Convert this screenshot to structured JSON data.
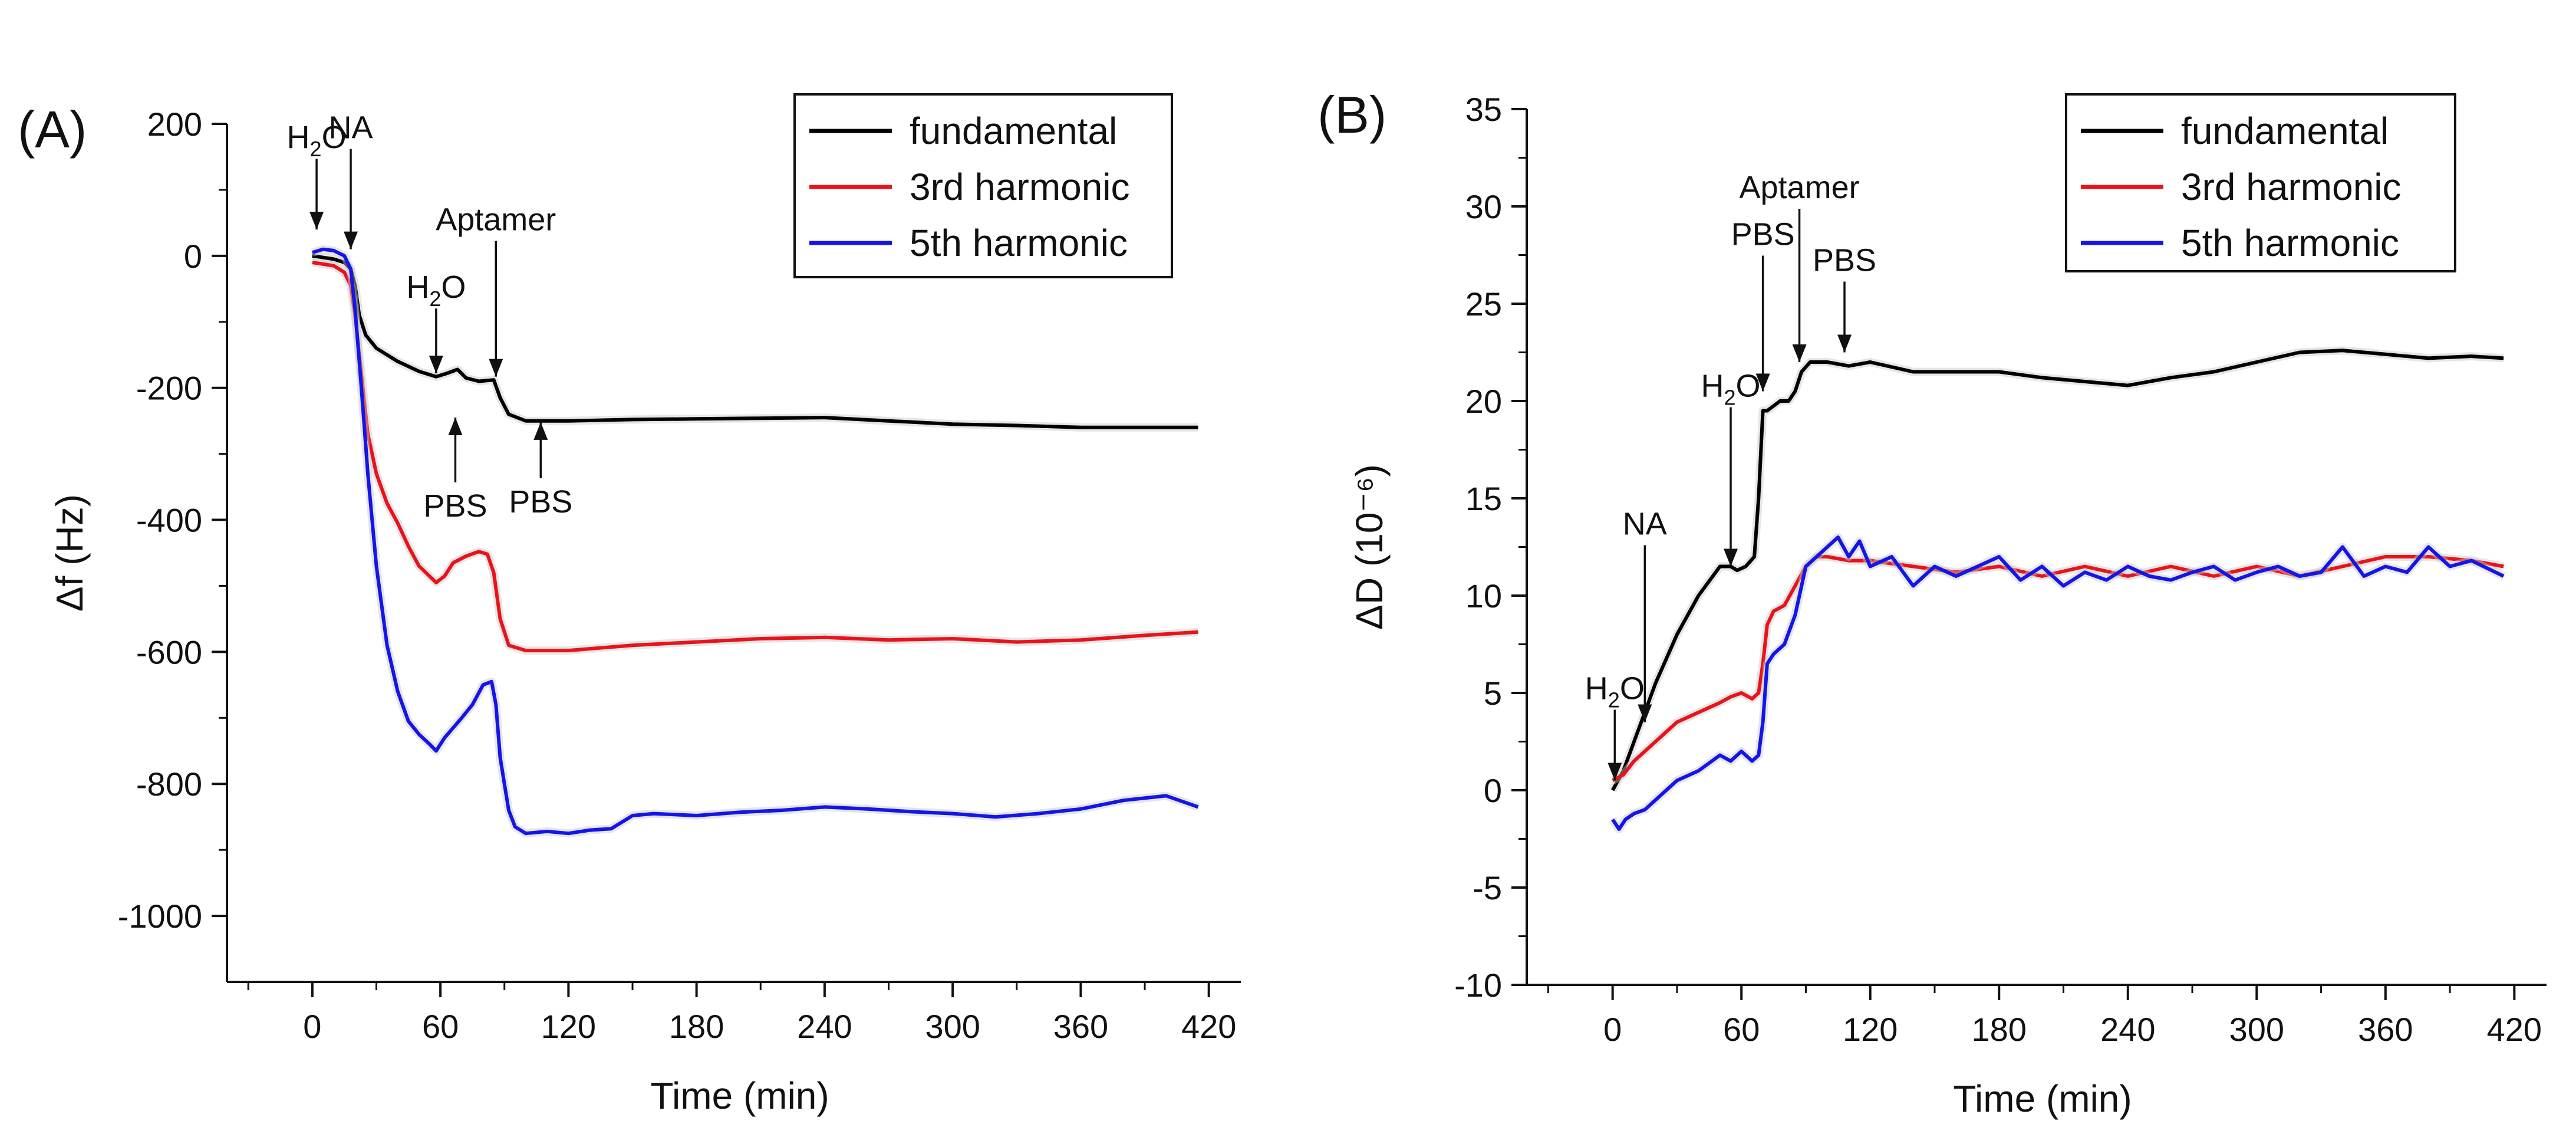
{
  "chart_data": [
    {
      "panel_label": "(A)",
      "type": "line",
      "xlabel": "Time (min)",
      "ylabel": "Δf (Hz)",
      "xlim": [
        -40,
        435
      ],
      "ylim": [
        -1100,
        200
      ],
      "xticks": [
        0,
        60,
        120,
        180,
        240,
        300,
        360,
        420
      ],
      "yticks": [
        -1000,
        -800,
        -600,
        -400,
        -200,
        0,
        200
      ],
      "grid": false,
      "legend_position": "top-right",
      "series": [
        {
          "name": "fundamental",
          "color": "#000000",
          "x": [
            0,
            10,
            15,
            18,
            20,
            22,
            25,
            30,
            40,
            50,
            58,
            63,
            68,
            72,
            78,
            85,
            88,
            92,
            100,
            120,
            150,
            180,
            210,
            240,
            270,
            300,
            330,
            360,
            390,
            415
          ],
          "y": [
            0,
            -5,
            -10,
            -20,
            -45,
            -90,
            -120,
            -140,
            -160,
            -175,
            -183,
            -178,
            -172,
            -185,
            -190,
            -188,
            -215,
            -240,
            -250,
            -250,
            -248,
            -247,
            -246,
            -245,
            -250,
            -255,
            -257,
            -260,
            -260,
            -260
          ]
        },
        {
          "name": "3rd harmonic",
          "color": "#e8141b",
          "x": [
            0,
            10,
            15,
            18,
            20,
            23,
            26,
            30,
            35,
            40,
            45,
            50,
            58,
            62,
            66,
            72,
            78,
            82,
            85,
            88,
            92,
            100,
            120,
            150,
            180,
            210,
            240,
            270,
            300,
            330,
            360,
            390,
            415
          ],
          "y": [
            -10,
            -15,
            -25,
            -45,
            -90,
            -180,
            -270,
            -330,
            -375,
            -405,
            -440,
            -470,
            -495,
            -485,
            -465,
            -455,
            -448,
            -452,
            -480,
            -550,
            -590,
            -598,
            -598,
            -590,
            -585,
            -580,
            -578,
            -582,
            -580,
            -585,
            -582,
            -575,
            -570
          ]
        },
        {
          "name": "5th harmonic",
          "color": "#1515e6",
          "x": [
            0,
            5,
            10,
            15,
            18,
            20,
            23,
            26,
            30,
            35,
            40,
            45,
            50,
            55,
            58,
            62,
            66,
            70,
            75,
            80,
            84,
            86,
            88,
            90,
            92,
            95,
            100,
            110,
            120,
            130,
            140,
            150,
            160,
            180,
            200,
            220,
            240,
            260,
            280,
            300,
            320,
            340,
            360,
            380,
            400,
            415
          ],
          "y": [
            5,
            10,
            8,
            0,
            -20,
            -80,
            -200,
            -330,
            -470,
            -590,
            -660,
            -705,
            -725,
            -740,
            -750,
            -730,
            -715,
            -700,
            -680,
            -650,
            -645,
            -680,
            -760,
            -800,
            -840,
            -865,
            -875,
            -872,
            -875,
            -870,
            -868,
            -848,
            -845,
            -848,
            -843,
            -840,
            -835,
            -838,
            -842,
            -845,
            -850,
            -845,
            -838,
            -825,
            -818,
            -835
          ]
        }
      ],
      "annotations": [
        {
          "text": "H2O",
          "x": 2,
          "y_tip": 40
        },
        {
          "text": "NA",
          "x": 18,
          "y_tip": 10
        },
        {
          "text": "H2O",
          "x": 58,
          "y_tip": -178
        },
        {
          "text": "Aptamer",
          "x": 86,
          "y_tip": -183
        },
        {
          "text": "PBS",
          "x": 67,
          "y_tip": -245
        },
        {
          "text": "PBS",
          "x": 107,
          "y_tip": -252
        }
      ]
    },
    {
      "panel_label": "(B)",
      "type": "line",
      "xlabel": "Time (min)",
      "ylabel": "ΔD (10⁻⁶)",
      "xlim": [
        -40,
        435
      ],
      "ylim": [
        -10,
        35
      ],
      "xticks": [
        0,
        60,
        120,
        180,
        240,
        300,
        360,
        420
      ],
      "yticks": [
        -10,
        -5,
        0,
        5,
        10,
        15,
        20,
        25,
        30,
        35
      ],
      "grid": false,
      "legend_position": "top-right",
      "series": [
        {
          "name": "fundamental",
          "color": "#000000",
          "x": [
            0,
            5,
            10,
            15,
            20,
            30,
            40,
            50,
            55,
            58,
            62,
            66,
            68,
            70,
            72,
            78,
            82,
            85,
            88,
            92,
            100,
            110,
            120,
            140,
            160,
            180,
            200,
            220,
            240,
            260,
            280,
            300,
            320,
            340,
            360,
            380,
            400,
            415
          ],
          "y": [
            0,
            1,
            2.5,
            4,
            5.5,
            8,
            10,
            11.5,
            11.5,
            11.3,
            11.5,
            12,
            15,
            19.5,
            19.5,
            20,
            20,
            20.5,
            21.5,
            22,
            22,
            21.8,
            22,
            21.5,
            21.5,
            21.5,
            21.2,
            21.0,
            20.8,
            21.2,
            21.5,
            22.0,
            22.5,
            22.6,
            22.4,
            22.2,
            22.3,
            22.2
          ]
        },
        {
          "name": "3rd harmonic",
          "color": "#e8141b",
          "x": [
            0,
            5,
            10,
            15,
            20,
            30,
            40,
            50,
            55,
            60,
            65,
            68,
            70,
            72,
            75,
            80,
            85,
            90,
            95,
            100,
            110,
            120,
            140,
            160,
            180,
            200,
            220,
            240,
            260,
            280,
            300,
            320,
            340,
            360,
            380,
            400,
            415
          ],
          "y": [
            0.5,
            0.8,
            1.5,
            2,
            2.5,
            3.5,
            4,
            4.5,
            4.8,
            5,
            4.7,
            5,
            6.5,
            8.5,
            9.2,
            9.5,
            10.5,
            11.5,
            12,
            12,
            11.8,
            11.8,
            11.5,
            11.2,
            11.5,
            11,
            11.5,
            11,
            11.5,
            11,
            11.5,
            11,
            11.5,
            12,
            12,
            11.8,
            11.5
          ]
        },
        {
          "name": "5th harmonic",
          "color": "#1515e6",
          "x": [
            0,
            3,
            6,
            10,
            15,
            20,
            30,
            40,
            50,
            55,
            60,
            65,
            68,
            70,
            72,
            75,
            80,
            85,
            90,
            95,
            100,
            105,
            110,
            115,
            120,
            130,
            140,
            150,
            160,
            170,
            180,
            190,
            200,
            210,
            220,
            230,
            240,
            250,
            260,
            270,
            280,
            290,
            300,
            310,
            320,
            330,
            340,
            350,
            360,
            370,
            380,
            390,
            400,
            415
          ],
          "y": [
            -1.5,
            -2,
            -1.5,
            -1.2,
            -1,
            -0.5,
            0.5,
            1,
            1.8,
            1.5,
            2,
            1.5,
            1.8,
            3.5,
            6.5,
            7,
            7.5,
            9,
            11.5,
            12,
            12.5,
            13,
            12,
            12.8,
            11.5,
            12,
            10.5,
            11.5,
            11,
            11.5,
            12,
            10.8,
            11.5,
            10.5,
            11.2,
            10.8,
            11.5,
            11,
            10.8,
            11.2,
            11.5,
            10.8,
            11.2,
            11.5,
            11,
            11.2,
            12.5,
            11,
            11.5,
            11.2,
            12.5,
            11.5,
            11.8,
            11
          ]
        }
      ],
      "annotations": [
        {
          "text": "H2O",
          "x": 1,
          "y_tip": 0.5
        },
        {
          "text": "NA",
          "x": 15,
          "y_tip": 3.5
        },
        {
          "text": "H2O",
          "x": 55,
          "y_tip": 11.5
        },
        {
          "text": "PBS",
          "x": 70,
          "y_tip": 20.5
        },
        {
          "text": "Aptamer",
          "x": 87,
          "y_tip": 22
        },
        {
          "text": "PBS",
          "x": 108,
          "y_tip": 22.5
        }
      ]
    }
  ]
}
